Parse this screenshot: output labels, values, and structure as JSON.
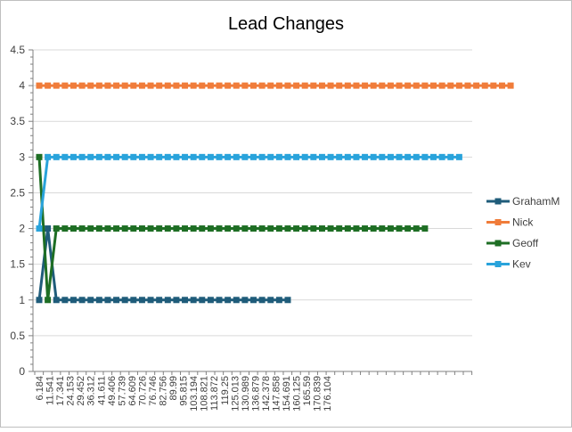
{
  "chart_data": {
    "type": "line",
    "title": "Lead Changes",
    "xlabel": "",
    "ylabel": "",
    "ylim": [
      0,
      4.5
    ],
    "yticks": [
      "0",
      "0.5",
      "1",
      "1.5",
      "2",
      "2.5",
      "3",
      "3.5",
      "4",
      "4.5"
    ],
    "grid": "horizontal",
    "legend_position": "right",
    "x_tick_labels": [
      "6.184",
      "11.541",
      "17.341",
      "24.153",
      "29.452",
      "36.312",
      "41.611",
      "49.406",
      "57.739",
      "64.609",
      "70.726",
      "76.746",
      "82.756",
      "89.99",
      "95.815",
      "103.194",
      "108.821",
      "113.872",
      "119.25",
      "125.013",
      "130.989",
      "136.879",
      "142.378",
      "147.858",
      "154.691",
      "160.125",
      "165.59",
      "170.839",
      "176.104"
    ],
    "series": [
      {
        "name": "GrahamM",
        "color": "#1F5C7A",
        "values": [
          1,
          2,
          1,
          1,
          1,
          1,
          1,
          1,
          1,
          1,
          1,
          1,
          1,
          1,
          1,
          1,
          1,
          1,
          1,
          1,
          1,
          1,
          1,
          1,
          1,
          1,
          1,
          1,
          1,
          1
        ]
      },
      {
        "name": "Nick",
        "color": "#F07C3A",
        "values": [
          4,
          4,
          4,
          4,
          4,
          4,
          4,
          4,
          4,
          4,
          4,
          4,
          4,
          4,
          4,
          4,
          4,
          4,
          4,
          4,
          4,
          4,
          4,
          4,
          4,
          4,
          4,
          4,
          4,
          4,
          4,
          4,
          4,
          4,
          4,
          4,
          4,
          4,
          4,
          4,
          4,
          4,
          4,
          4,
          4,
          4,
          4,
          4,
          4,
          4,
          4,
          4,
          4,
          4,
          4,
          4
        ]
      },
      {
        "name": "Geoff",
        "color": "#1E6E24",
        "values": [
          3,
          1,
          2,
          2,
          2,
          2,
          2,
          2,
          2,
          2,
          2,
          2,
          2,
          2,
          2,
          2,
          2,
          2,
          2,
          2,
          2,
          2,
          2,
          2,
          2,
          2,
          2,
          2,
          2,
          2,
          2,
          2,
          2,
          2,
          2,
          2,
          2,
          2,
          2,
          2,
          2,
          2,
          2,
          2,
          2,
          2
        ]
      },
      {
        "name": "Kev",
        "color": "#29A3DB",
        "values": [
          2,
          3,
          3,
          3,
          3,
          3,
          3,
          3,
          3,
          3,
          3,
          3,
          3,
          3,
          3,
          3,
          3,
          3,
          3,
          3,
          3,
          3,
          3,
          3,
          3,
          3,
          3,
          3,
          3,
          3,
          3,
          3,
          3,
          3,
          3,
          3,
          3,
          3,
          3,
          3,
          3,
          3,
          3,
          3,
          3,
          3,
          3,
          3,
          3,
          3
        ]
      }
    ]
  }
}
